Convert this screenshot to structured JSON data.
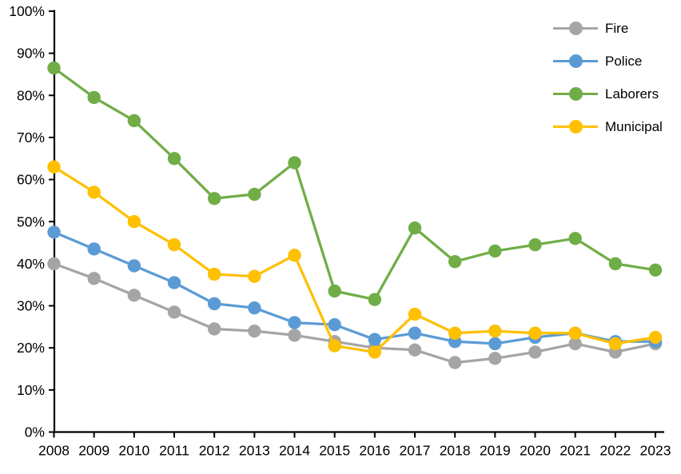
{
  "chart_data": {
    "type": "line",
    "title": "",
    "xlabel": "",
    "ylabel": "",
    "categories": [
      "2008",
      "2009",
      "2010",
      "2011",
      "2012",
      "2013",
      "2014",
      "2015",
      "2016",
      "2017",
      "2018",
      "2019",
      "2020",
      "2021",
      "2022",
      "2023"
    ],
    "series": [
      {
        "name": "Fire",
        "color": "#A5A5A5",
        "values": [
          40,
          36.5,
          32.5,
          28.5,
          24.5,
          24,
          23,
          21.5,
          20,
          19.5,
          16.5,
          17.5,
          19,
          21,
          19,
          21
        ]
      },
      {
        "name": "Police",
        "color": "#5B9BD5",
        "values": [
          47.5,
          43.5,
          39.5,
          35.5,
          30.5,
          29.5,
          26,
          25.5,
          22,
          23.5,
          21.5,
          21,
          22.5,
          23.5,
          21.5,
          21.5
        ]
      },
      {
        "name": "Laborers",
        "color": "#70AD47",
        "values": [
          86.5,
          79.5,
          74,
          65,
          55.5,
          56.5,
          64,
          33.5,
          31.5,
          48.5,
          40.5,
          43,
          44.5,
          46,
          40,
          38.5
        ]
      },
      {
        "name": "Municipal",
        "color": "#FFC000",
        "values": [
          63,
          57,
          50,
          44.5,
          37.5,
          37,
          42,
          20.5,
          19,
          28,
          23.5,
          24,
          23.5,
          23.5,
          21,
          22.5
        ]
      }
    ],
    "ylim": [
      0,
      100
    ],
    "ytick_step": 10,
    "ytick_labels": [
      "0%",
      "10%",
      "20%",
      "30%",
      "40%",
      "50%",
      "60%",
      "70%",
      "80%",
      "90%",
      "100%"
    ],
    "grid": false,
    "legend_position": "top-right",
    "marker": "circle",
    "axis_color": "#000000",
    "background": "#FFFFFF"
  }
}
